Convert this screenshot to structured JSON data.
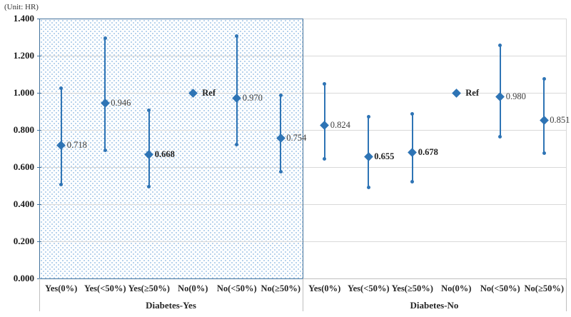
{
  "unit_label": "(Unit: HR)",
  "colors": {
    "series": "#2E74B5",
    "grid": "#D9D9D9",
    "axis_line": "#BFBFBF",
    "panel_border": "#41719C",
    "pattern_dot": "#9DC3E6",
    "tick_text": "#1A1A1A",
    "label_text": "#3D3D3D"
  },
  "chart_data": {
    "type": "scatter",
    "subtype": "forest-errorbar",
    "title": "",
    "ylabel": "(Unit: HR)",
    "xlabel": "",
    "ylim": [
      0,
      1.4
    ],
    "ytick_step": 0.2,
    "ytick_labels": [
      "0.000",
      "0.200",
      "0.400",
      "0.600",
      "0.800",
      "1.000",
      "1.200",
      "1.400"
    ],
    "grid": true,
    "legend": "none",
    "panels": [
      {
        "group_label": "Diabetes-Yes",
        "shaded": true,
        "points": [
          {
            "category": "Yes(0%)",
            "hr": 0.718,
            "label": "0.718",
            "ci_low": 0.505,
            "ci_high": 1.025,
            "bold": false,
            "ref": false
          },
          {
            "category": "Yes(<50%)",
            "hr": 0.946,
            "label": "0.946",
            "ci_low": 0.69,
            "ci_high": 1.295,
            "bold": false,
            "ref": false
          },
          {
            "category": "Yes(≥50%)",
            "hr": 0.668,
            "label": "0.668",
            "ci_low": 0.495,
            "ci_high": 0.905,
            "bold": true,
            "ref": false
          },
          {
            "category": "No(0%)",
            "hr": 1.0,
            "label": "Ref",
            "ci_low": null,
            "ci_high": null,
            "bold": true,
            "ref": true
          },
          {
            "category": "No(<50%)",
            "hr": 0.97,
            "label": "0.970",
            "ci_low": 0.72,
            "ci_high": 1.305,
            "bold": false,
            "ref": false
          },
          {
            "category": "No(≥50%)",
            "hr": 0.754,
            "label": "0.754",
            "ci_low": 0.575,
            "ci_high": 0.985,
            "bold": false,
            "ref": false
          }
        ]
      },
      {
        "group_label": "Diabetes-No",
        "shaded": false,
        "points": [
          {
            "category": "Yes(0%)",
            "hr": 0.824,
            "label": "0.824",
            "ci_low": 0.645,
            "ci_high": 1.05,
            "bold": false,
            "ref": false
          },
          {
            "category": "Yes(<50%)",
            "hr": 0.655,
            "label": "0.655",
            "ci_low": 0.49,
            "ci_high": 0.87,
            "bold": true,
            "ref": false
          },
          {
            "category": "Yes(≥50%)",
            "hr": 0.678,
            "label": "0.678",
            "ci_low": 0.52,
            "ci_high": 0.885,
            "bold": true,
            "ref": false
          },
          {
            "category": "No(0%)",
            "hr": 1.0,
            "label": "Ref",
            "ci_low": null,
            "ci_high": null,
            "bold": true,
            "ref": true
          },
          {
            "category": "No(<50%)",
            "hr": 0.98,
            "label": "0.980",
            "ci_low": 0.765,
            "ci_high": 1.255,
            "bold": false,
            "ref": false
          },
          {
            "category": "No(≥50%)",
            "hr": 0.851,
            "label": "0.851",
            "ci_low": 0.675,
            "ci_high": 1.075,
            "bold": false,
            "ref": false
          }
        ]
      }
    ]
  }
}
